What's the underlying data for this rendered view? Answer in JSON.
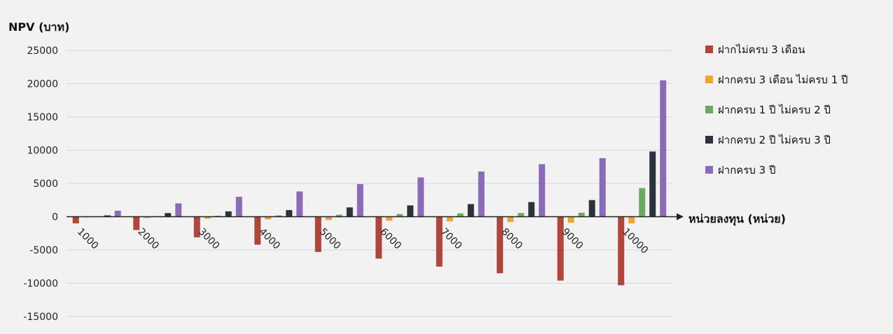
{
  "chart_data": {
    "type": "bar",
    "ylabel": "NPV (บาท)",
    "xlabel": "หน่วยลงทุน (หน่วย)",
    "categories": [
      "1000",
      "2000",
      "3000",
      "4000",
      "5000",
      "6000",
      "7000",
      "8000",
      "9000",
      "10000"
    ],
    "yticks": [
      "25000",
      "20000",
      "15000",
      "10000",
      "5000",
      "0",
      "-5000",
      "-10000",
      "-15000"
    ],
    "ylim": [
      -15000,
      25000
    ],
    "grid": true,
    "legend_position": "right",
    "series": [
      {
        "name": "ฝากไม่ครบ 3 เดือน",
        "color": "#b0453c",
        "values": [
          -1000,
          -2000,
          -3100,
          -4200,
          -5300,
          -6300,
          -7500,
          -8500,
          -9600,
          -10300
        ]
      },
      {
        "name": "ฝากครบ 3 เดือน ไม่ครบ 1 ปี",
        "color": "#e8a838",
        "values": [
          -100,
          -200,
          -300,
          -400,
          -500,
          -600,
          -700,
          -800,
          -900,
          -1000
        ]
      },
      {
        "name": "ฝากครบ 1 ปี ไม่ครบ 2 ปี",
        "color": "#6aaa5e",
        "values": [
          50,
          100,
          150,
          200,
          300,
          400,
          500,
          550,
          600,
          4300
        ]
      },
      {
        "name": "ฝากครบ 2 ปี ไม่ครบ 3 ปี",
        "color": "#2d333d",
        "values": [
          200,
          550,
          800,
          1000,
          1400,
          1700,
          1900,
          2200,
          2500,
          9800
        ]
      },
      {
        "name": "ฝากครบ 3 ปี",
        "color": "#8a6bb7",
        "values": [
          900,
          2000,
          3000,
          3800,
          4900,
          5900,
          6800,
          7900,
          8800,
          20500
        ]
      }
    ]
  }
}
